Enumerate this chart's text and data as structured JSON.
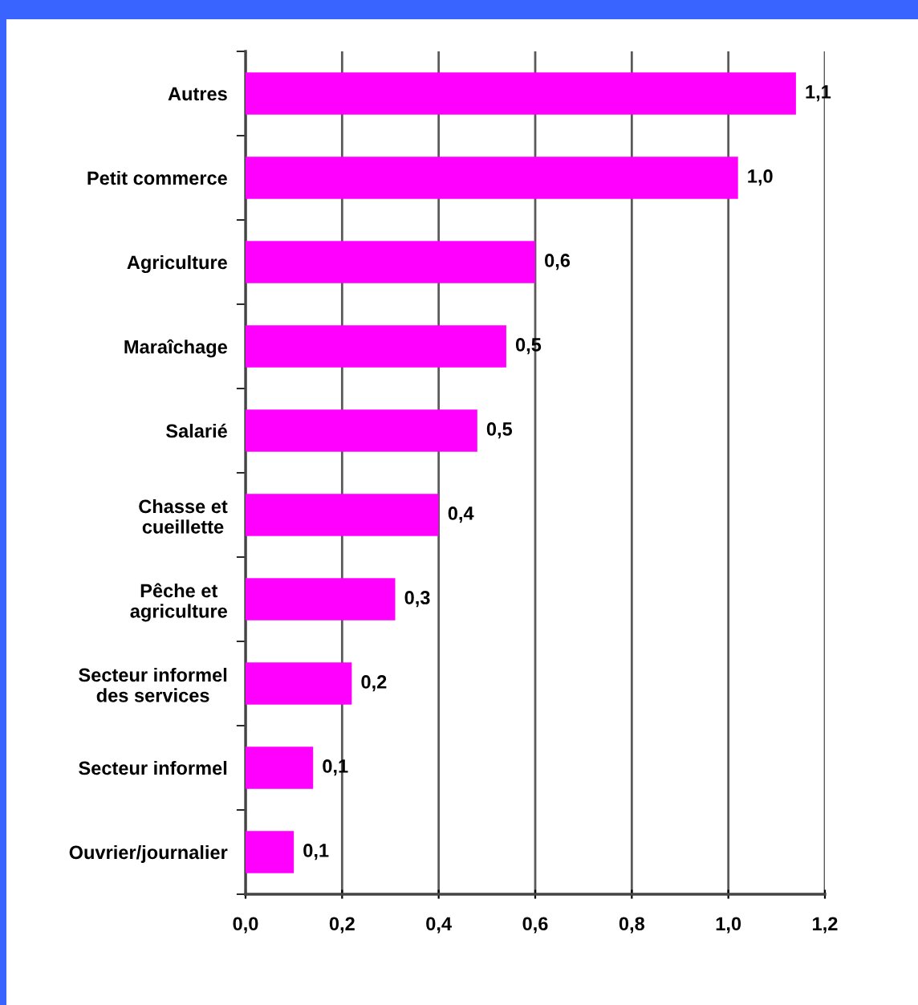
{
  "chart_data": {
    "type": "bar",
    "orientation": "horizontal",
    "categories": [
      "Autres",
      "Petit commerce",
      "Agriculture",
      "Maraîchage",
      "Salarié",
      "Chasse et\ncueillette",
      "Pêche et\nagriculture",
      "Secteur informel\ndes services",
      "Secteur informel",
      "Ouvrier/journalier"
    ],
    "values": [
      1.14,
      1.02,
      0.6,
      0.54,
      0.48,
      0.4,
      0.31,
      0.22,
      0.14,
      0.1
    ],
    "value_labels": [
      "1,1",
      "1,0",
      "0,6",
      "0,5",
      "0,5",
      "0,4",
      "0,3",
      "0,2",
      "0,1",
      "0,1"
    ],
    "color": "#ff00ff",
    "xlim": [
      0,
      1.2
    ],
    "xticks": [
      {
        "value": 0,
        "label": "0,0"
      },
      {
        "value": 0.2,
        "label": "0,2"
      },
      {
        "value": 0.4,
        "label": "0,4"
      },
      {
        "value": 0.6,
        "label": "0,6"
      },
      {
        "value": 0.8,
        "label": "0,8"
      },
      {
        "value": 1.0,
        "label": "1,0"
      },
      {
        "value": 1.2,
        "label": "1,2"
      }
    ],
    "grid": "x"
  }
}
